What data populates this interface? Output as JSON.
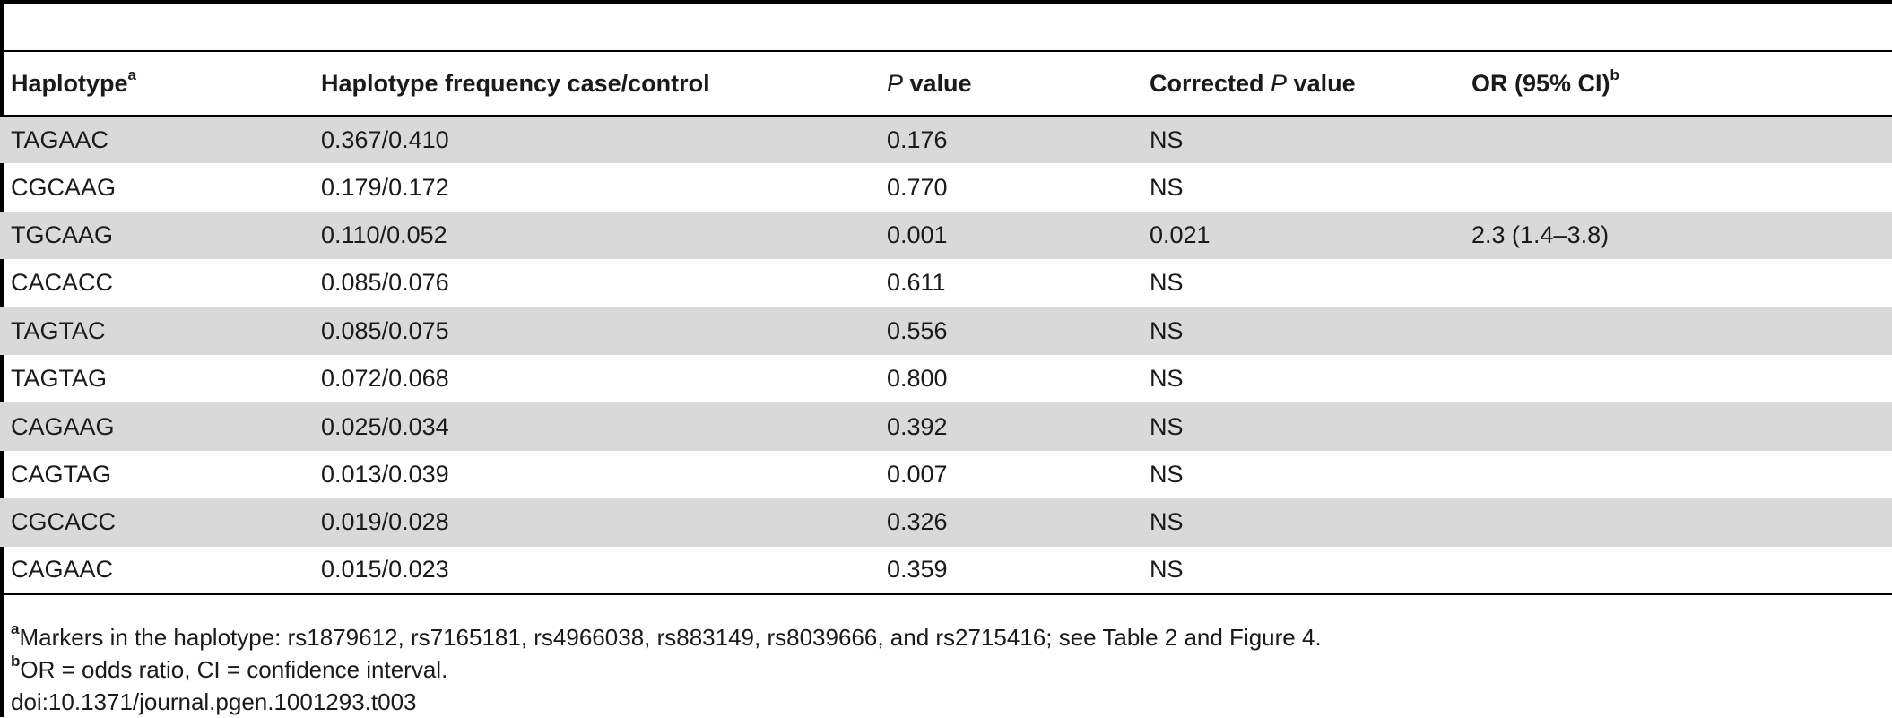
{
  "table": {
    "headers": {
      "haplotype": "Haplotype",
      "haplotype_sup": "a",
      "frequency": "Haplotype frequency case/control",
      "p_value_italic": "P",
      "p_value_rest": " value",
      "corrected_pre": "Corrected ",
      "corrected_italic": "P",
      "corrected_rest": " value",
      "or_ci": "OR (95% CI)",
      "or_ci_sup": "b"
    },
    "rows": [
      {
        "haplotype": "TAGAAC",
        "frequency": "0.367/0.410",
        "p_value": "0.176",
        "corrected_p": "NS",
        "or_ci": ""
      },
      {
        "haplotype": "CGCAAG",
        "frequency": "0.179/0.172",
        "p_value": "0.770",
        "corrected_p": "NS",
        "or_ci": ""
      },
      {
        "haplotype": "TGCAAG",
        "frequency": "0.110/0.052",
        "p_value": "0.001",
        "corrected_p": "0.021",
        "or_ci": "2.3 (1.4–3.8)"
      },
      {
        "haplotype": "CACACC",
        "frequency": "0.085/0.076",
        "p_value": "0.611",
        "corrected_p": "NS",
        "or_ci": ""
      },
      {
        "haplotype": "TAGTAC",
        "frequency": "0.085/0.075",
        "p_value": "0.556",
        "corrected_p": "NS",
        "or_ci": ""
      },
      {
        "haplotype": "TAGTAG",
        "frequency": "0.072/0.068",
        "p_value": "0.800",
        "corrected_p": "NS",
        "or_ci": ""
      },
      {
        "haplotype": "CAGAAG",
        "frequency": "0.025/0.034",
        "p_value": "0.392",
        "corrected_p": "NS",
        "or_ci": ""
      },
      {
        "haplotype": "CAGTAG",
        "frequency": "0.013/0.039",
        "p_value": "0.007",
        "corrected_p": "NS",
        "or_ci": ""
      },
      {
        "haplotype": "CGCACC",
        "frequency": "0.019/0.028",
        "p_value": "0.326",
        "corrected_p": "NS",
        "or_ci": ""
      },
      {
        "haplotype": "CAGAAC",
        "frequency": "0.015/0.023",
        "p_value": "0.359",
        "corrected_p": "NS",
        "or_ci": ""
      }
    ]
  },
  "footnotes": {
    "a_mark": "a",
    "a_text": "Markers in the haplotype: rs1879612, rs7165181, rs4966038, rs883149, rs8039666, and rs2715416; see Table 2 and Figure 4.",
    "b_mark": "b",
    "b_text": "OR = odds ratio, CI = confidence interval.",
    "doi": "doi:10.1371/journal.pgen.1001293.t003"
  },
  "colors": {
    "row_shade": "#d9d9d9",
    "rule": "#000000",
    "text": "#1a1a1a"
  }
}
